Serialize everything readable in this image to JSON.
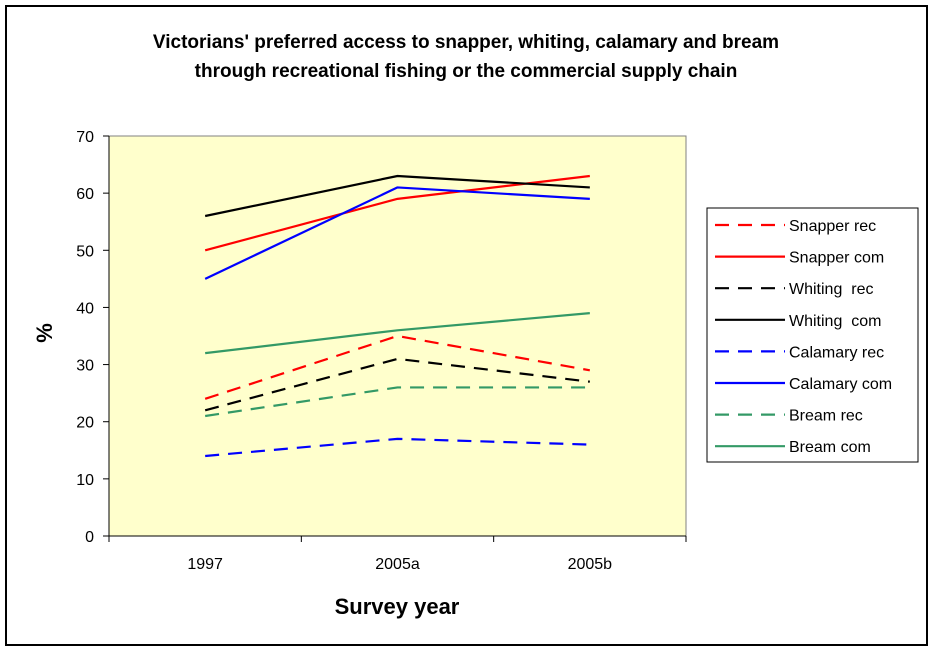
{
  "chart_data": {
    "type": "line",
    "title_lines": [
      "Victorians' preferred access to snapper, whiting, calamary and bream",
      "through recreational fishing or the commercial supply chain"
    ],
    "xlabel": "Survey year",
    "ylabel": "%",
    "categories": [
      "1997",
      "2005a",
      "2005b"
    ],
    "ylim": [
      0,
      70
    ],
    "yticks": [
      "0",
      "10",
      "20",
      "30",
      "40",
      "50",
      "60",
      "70"
    ],
    "plot_background": "#ffffcc",
    "legend_position": "right",
    "series": [
      {
        "name": "Snapper rec",
        "color": "#ff0000",
        "dash": "dashed",
        "values": [
          24,
          35,
          29
        ]
      },
      {
        "name": "Snapper com",
        "color": "#ff0000",
        "dash": "solid",
        "values": [
          50,
          59,
          63
        ]
      },
      {
        "name": "Whiting  rec",
        "color": "#000000",
        "dash": "dashed",
        "values": [
          22,
          31,
          27
        ]
      },
      {
        "name": "Whiting  com",
        "color": "#000000",
        "dash": "solid",
        "values": [
          56,
          63,
          61
        ]
      },
      {
        "name": "Calamary rec",
        "color": "#0000ff",
        "dash": "dashed",
        "values": [
          14,
          17,
          16
        ]
      },
      {
        "name": "Calamary com",
        "color": "#0000ff",
        "dash": "solid",
        "values": [
          45,
          61,
          59
        ]
      },
      {
        "name": "Bream rec",
        "color": "#339966",
        "dash": "dashed",
        "values": [
          21,
          26,
          26
        ]
      },
      {
        "name": "Bream com",
        "color": "#339966",
        "dash": "solid",
        "values": [
          32,
          36,
          39
        ]
      }
    ]
  }
}
